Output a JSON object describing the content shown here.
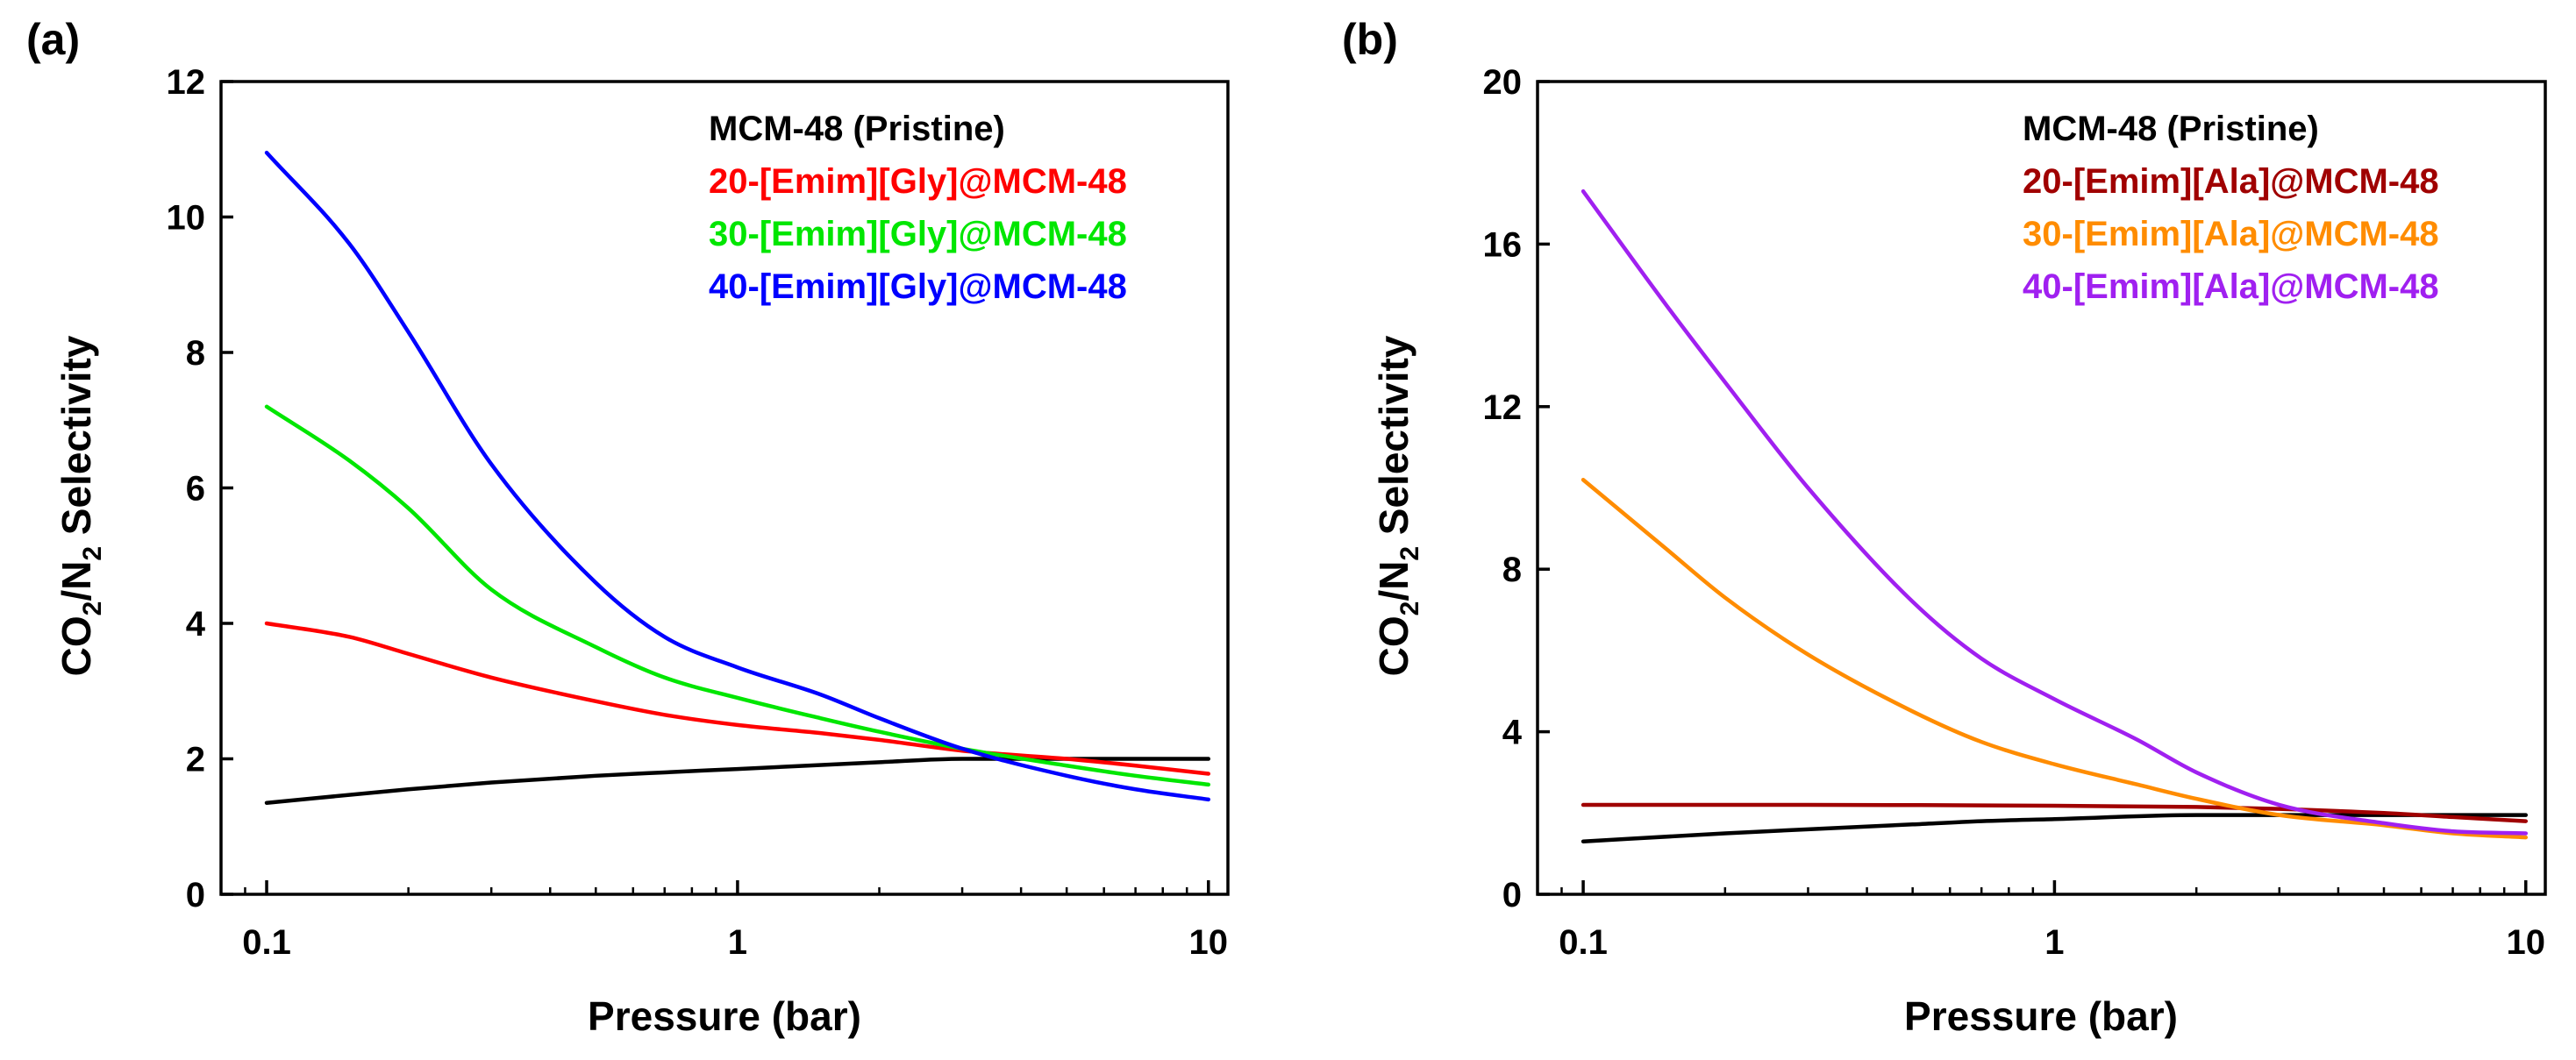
{
  "chart_data": [
    {
      "type": "line",
      "panel_label": "(a)",
      "xscale": "log",
      "xlim": [
        0.08,
        11
      ],
      "ylim": [
        0,
        12
      ],
      "xticks": [
        0.1,
        1,
        10
      ],
      "xtick_labels": [
        "0.1",
        "1",
        "10"
      ],
      "yticks": [
        0,
        2,
        4,
        6,
        8,
        10,
        12
      ],
      "ytick_labels": [
        "0",
        "2",
        "4",
        "6",
        "8",
        "10",
        "12"
      ],
      "xlabel": "Pressure (bar)",
      "ylabel": {
        "p1": "CO",
        "s1": "2",
        "p2": "/N",
        "s2": "2",
        "p3": " Selectivity"
      },
      "legend_position": "top-right",
      "series": [
        {
          "name": "MCM-48 (Pristine)",
          "color": "#000000",
          "x": [
            0.1,
            0.2,
            0.3,
            0.5,
            0.7,
            1,
            2,
            3,
            5,
            7,
            10
          ],
          "y": [
            1.35,
            1.55,
            1.65,
            1.75,
            1.8,
            1.85,
            1.95,
            2.0,
            2.0,
            2.0,
            2.0
          ]
        },
        {
          "name": "20-[Emim][Gly]@MCM-48",
          "color": "#ff0000",
          "x": [
            0.1,
            0.15,
            0.2,
            0.3,
            0.5,
            0.7,
            1,
            1.5,
            2,
            3,
            5,
            7,
            10
          ],
          "y": [
            4.0,
            3.8,
            3.55,
            3.2,
            2.85,
            2.65,
            2.5,
            2.38,
            2.28,
            2.12,
            2.0,
            1.9,
            1.78
          ]
        },
        {
          "name": "30-[Emim][Gly]@MCM-48",
          "color": "#00e600",
          "x": [
            0.1,
            0.15,
            0.2,
            0.3,
            0.5,
            0.7,
            1,
            1.5,
            2,
            3,
            5,
            7,
            10
          ],
          "y": [
            7.2,
            6.4,
            5.7,
            4.5,
            3.65,
            3.2,
            2.9,
            2.6,
            2.4,
            2.15,
            1.9,
            1.75,
            1.62
          ]
        },
        {
          "name": "40-[Emim][Gly]@MCM-48",
          "color": "#0000ff",
          "x": [
            0.1,
            0.15,
            0.2,
            0.3,
            0.5,
            0.7,
            1,
            1.5,
            2,
            3,
            5,
            7,
            10
          ],
          "y": [
            10.95,
            9.6,
            8.3,
            6.35,
            4.6,
            3.8,
            3.35,
            2.95,
            2.6,
            2.15,
            1.75,
            1.55,
            1.4
          ]
        }
      ]
    },
    {
      "type": "line",
      "panel_label": "(b)",
      "xscale": "log",
      "xlim": [
        0.08,
        11
      ],
      "ylim": [
        0,
        20
      ],
      "xticks": [
        0.1,
        1,
        10
      ],
      "xtick_labels": [
        "0.1",
        "1",
        "10"
      ],
      "yticks": [
        0,
        4,
        8,
        12,
        16,
        20
      ],
      "ytick_labels": [
        "0",
        "4",
        "8",
        "12",
        "16",
        "20"
      ],
      "xlabel": "Pressure (bar)",
      "ylabel": {
        "p1": "CO",
        "s1": "2",
        "p2": "/N",
        "s2": "2",
        "p3": " Selectivity"
      },
      "legend_position": "top-right",
      "series": [
        {
          "name": "MCM-48 (Pristine)",
          "color": "#000000",
          "x": [
            0.1,
            0.2,
            0.3,
            0.5,
            0.7,
            1,
            2,
            3,
            5,
            7,
            10
          ],
          "y": [
            1.3,
            1.5,
            1.6,
            1.72,
            1.8,
            1.85,
            1.95,
            1.95,
            1.95,
            1.95,
            1.95
          ]
        },
        {
          "name": "20-[Emim][Ala]@MCM-48",
          "color": "#a00000",
          "x": [
            0.1,
            0.3,
            1,
            2,
            3,
            5,
            7,
            10
          ],
          "y": [
            2.2,
            2.2,
            2.18,
            2.15,
            2.1,
            2.0,
            1.9,
            1.8
          ]
        },
        {
          "name": "30-[Emim][Ala]@MCM-48",
          "color": "#ff8c00",
          "x": [
            0.1,
            0.15,
            0.2,
            0.3,
            0.5,
            0.7,
            1,
            1.5,
            2,
            3,
            5,
            7,
            10
          ],
          "y": [
            10.2,
            8.5,
            7.3,
            5.9,
            4.5,
            3.75,
            3.2,
            2.7,
            2.35,
            1.95,
            1.7,
            1.5,
            1.4
          ]
        },
        {
          "name": "40-[Emim][Ala]@MCM-48",
          "color": "#a020f0",
          "x": [
            0.1,
            0.15,
            0.2,
            0.3,
            0.5,
            0.7,
            1,
            1.5,
            2,
            3,
            5,
            7,
            10
          ],
          "y": [
            17.3,
            14.5,
            12.6,
            10.0,
            7.2,
            5.8,
            4.8,
            3.8,
            3.0,
            2.2,
            1.75,
            1.55,
            1.5
          ]
        }
      ]
    }
  ]
}
